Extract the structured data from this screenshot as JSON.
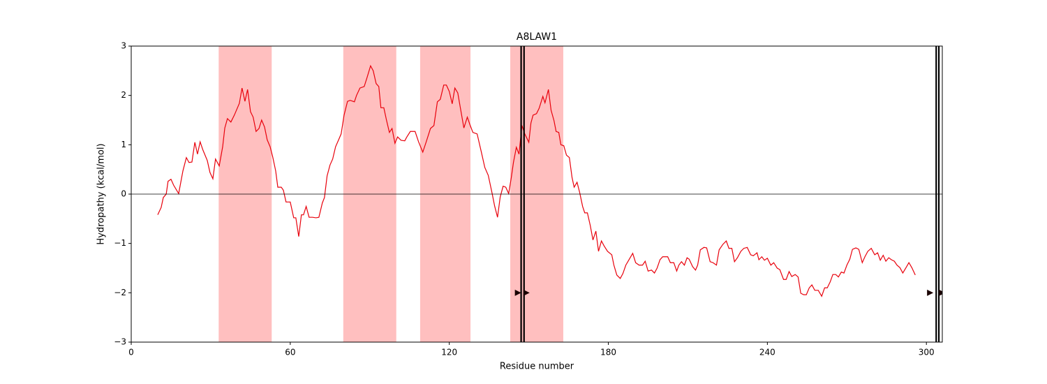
{
  "chart_data": {
    "type": "line",
    "title": "A8LAW1",
    "xlabel": "Residue number",
    "ylabel": "Hydropathy (kcal/mol)",
    "xlim": [
      0,
      306
    ],
    "ylim": [
      -3,
      3
    ],
    "xticks": [
      0,
      60,
      120,
      180,
      240,
      300
    ],
    "yticks": [
      {
        "value": -3,
        "label": "−3"
      },
      {
        "value": -2,
        "label": "−2"
      },
      {
        "value": -1,
        "label": "−1"
      },
      0,
      1,
      2,
      3
    ],
    "color": "#e8000b",
    "span_color": "#ffbfbf",
    "hline": 0,
    "spans": [
      [
        33,
        53
      ],
      [
        80,
        100
      ],
      [
        109,
        128
      ],
      [
        143,
        163
      ]
    ],
    "vlines": [
      147.1,
      148.2,
      303.7,
      304.7
    ],
    "markers": {
      "x": [
        145.8,
        149,
        301.3,
        305.8
      ],
      "y": [
        -2,
        -2,
        -2,
        -2
      ]
    },
    "x": [
      10,
      11.3,
      12.1,
      13.2,
      13.9,
      15,
      16,
      17.9,
      19.5,
      20.8,
      21.8,
      22.9,
      24,
      25,
      26,
      27,
      28.7,
      29.7,
      30.8,
      31.8,
      33.2,
      34.5,
      35.3,
      36.3,
      37.6,
      38.9,
      40.8,
      41.8,
      42.9,
      43.9,
      45,
      46,
      47.1,
      48.2,
      49.2,
      50.3,
      51.3,
      52.4,
      53.4,
      54.5,
      55.3,
      56.6,
      57.4,
      58.4,
      60,
      61.3,
      62.1,
      63.2,
      64.2,
      65,
      66,
      67.1,
      68.4,
      69.7,
      70.8,
      72.1,
      72.9,
      73.9,
      75,
      76,
      77.1,
      78.4,
      79.2,
      80.3,
      81.6,
      82.6,
      84.2,
      85,
      86.3,
      87.9,
      88.9,
      90.3,
      91.3,
      92.4,
      93.4,
      94.2,
      95.3,
      96.3,
      97.4,
      98.4,
      99.5,
      100.5,
      101.8,
      103.2,
      103.9,
      105.3,
      107.1,
      108.4,
      110,
      111.3,
      112.9,
      114.2,
      115.5,
      116.6,
      117.9,
      118.9,
      120,
      121.1,
      122.1,
      123.2,
      124.2,
      125.5,
      126.8,
      127.9,
      128.9,
      130.5,
      132.1,
      133.4,
      134.7,
      136.1,
      137.1,
      138.2,
      139.2,
      140.3,
      141.3,
      142.4,
      143.4,
      144.2,
      145.3,
      146.3,
      147.4,
      148.4,
      150,
      150.8,
      151.6,
      152.9,
      153.9,
      155.3,
      156.1,
      157.4,
      158.4,
      159.5,
      160.3,
      161.3,
      162.1,
      163.2,
      164.2,
      165.3,
      166.3,
      167.1,
      168.2,
      169.2,
      170.3,
      171.1,
      172.1,
      173.2,
      174.2,
      175.3,
      176.3,
      177.4,
      178.4,
      179.7,
      181.3,
      182.1,
      183.2,
      184.5,
      185.5,
      186.6,
      187.9,
      189.2,
      190.3,
      191.6,
      192.9,
      193.9,
      195,
      196.3,
      197.4,
      198.4,
      199.5,
      200.5,
      202.4,
      203.4,
      204.7,
      205.8,
      206.6,
      207.6,
      208.7,
      209.7,
      210.5,
      211.8,
      212.9,
      213.7,
      214.7,
      216.1,
      217.1,
      218.4,
      219.5,
      220.8,
      221.8,
      223.2,
      224.5,
      225.5,
      226.6,
      227.6,
      228.7,
      230,
      231.1,
      232.4,
      233.7,
      234.7,
      236.1,
      236.8,
      237.9,
      238.9,
      240,
      241.3,
      242.4,
      243.7,
      244.7,
      246.1,
      247.1,
      248.2,
      249.2,
      250.5,
      251.6,
      252.6,
      253.7,
      254.7,
      255.8,
      256.8,
      257.9,
      259.2,
      260.5,
      261.6,
      262.6,
      263.7,
      264.7,
      265.8,
      266.8,
      267.9,
      268.9,
      270,
      271.1,
      272.1,
      273.4,
      274.5,
      275.8,
      276.8,
      277.9,
      279.2,
      280.5,
      281.6,
      282.6,
      283.7,
      284.7,
      285.8,
      286.8,
      287.9,
      288.9,
      290,
      291.1,
      292.1,
      293.4,
      294.5,
      295.8
    ],
    "values": [
      -0.42,
      -0.27,
      -0.07,
      0,
      0.26,
      0.3,
      0.18,
      0.01,
      0.47,
      0.74,
      0.64,
      0.65,
      1.05,
      0.81,
      1.06,
      0.9,
      0.68,
      0.44,
      0.31,
      0.71,
      0.57,
      0.96,
      1.34,
      1.53,
      1.46,
      1.6,
      1.84,
      2.15,
      1.88,
      2.12,
      1.67,
      1.56,
      1.27,
      1.33,
      1.5,
      1.36,
      1.1,
      0.96,
      0.75,
      0.47,
      0.14,
      0.14,
      0.08,
      -0.16,
      -0.16,
      -0.48,
      -0.48,
      -0.86,
      -0.42,
      -0.42,
      -0.25,
      -0.47,
      -0.47,
      -0.48,
      -0.47,
      -0.18,
      -0.07,
      0.37,
      0.59,
      0.71,
      0.96,
      1.12,
      1.22,
      1.6,
      1.88,
      1.9,
      1.87,
      2,
      2.15,
      2.18,
      2.35,
      2.6,
      2.5,
      2.24,
      2.18,
      1.75,
      1.75,
      1.5,
      1.25,
      1.33,
      1.03,
      1.16,
      1.09,
      1.08,
      1.15,
      1.27,
      1.27,
      1.06,
      0.85,
      1.06,
      1.33,
      1.39,
      1.87,
      1.92,
      2.21,
      2.21,
      2.08,
      1.83,
      2.15,
      2.05,
      1.74,
      1.34,
      1.56,
      1.39,
      1.25,
      1.22,
      0.85,
      0.54,
      0.38,
      0.03,
      -0.24,
      -0.47,
      -0.06,
      0.16,
      0.14,
      0.01,
      0.34,
      0.64,
      0.95,
      0.81,
      1.39,
      1.23,
      1.05,
      1.44,
      1.6,
      1.63,
      1.74,
      1.98,
      1.85,
      2.12,
      1.7,
      1.49,
      1.27,
      1.25,
      1.0,
      0.98,
      0.79,
      0.74,
      0.34,
      0.14,
      0.24,
      0.03,
      -0.25,
      -0.38,
      -0.38,
      -0.64,
      -0.93,
      -0.75,
      -1.16,
      -0.95,
      -1.05,
      -1.16,
      -1.23,
      -1.44,
      -1.64,
      -1.71,
      -1.61,
      -1.44,
      -1.32,
      -1.2,
      -1.39,
      -1.44,
      -1.44,
      -1.36,
      -1.56,
      -1.54,
      -1.6,
      -1.5,
      -1.33,
      -1.27,
      -1.27,
      -1.39,
      -1.39,
      -1.56,
      -1.44,
      -1.37,
      -1.44,
      -1.29,
      -1.32,
      -1.47,
      -1.54,
      -1.44,
      -1.13,
      -1.08,
      -1.09,
      -1.37,
      -1.39,
      -1.44,
      -1.13,
      -1.02,
      -0.95,
      -1.1,
      -1.1,
      -1.37,
      -1.29,
      -1.16,
      -1.1,
      -1.08,
      -1.23,
      -1.25,
      -1.19,
      -1.33,
      -1.27,
      -1.34,
      -1.3,
      -1.44,
      -1.39,
      -1.5,
      -1.53,
      -1.73,
      -1.73,
      -1.57,
      -1.67,
      -1.63,
      -1.68,
      -2.01,
      -2.04,
      -2.04,
      -1.9,
      -1.84,
      -1.95,
      -1.95,
      -2.07,
      -1.9,
      -1.9,
      -1.78,
      -1.63,
      -1.63,
      -1.68,
      -1.58,
      -1.6,
      -1.44,
      -1.32,
      -1.12,
      -1.09,
      -1.12,
      -1.39,
      -1.27,
      -1.16,
      -1.1,
      -1.23,
      -1.19,
      -1.34,
      -1.24,
      -1.36,
      -1.29,
      -1.33,
      -1.36,
      -1.44,
      -1.49,
      -1.6,
      -1.51,
      -1.39,
      -1.49,
      -1.64
    ]
  }
}
